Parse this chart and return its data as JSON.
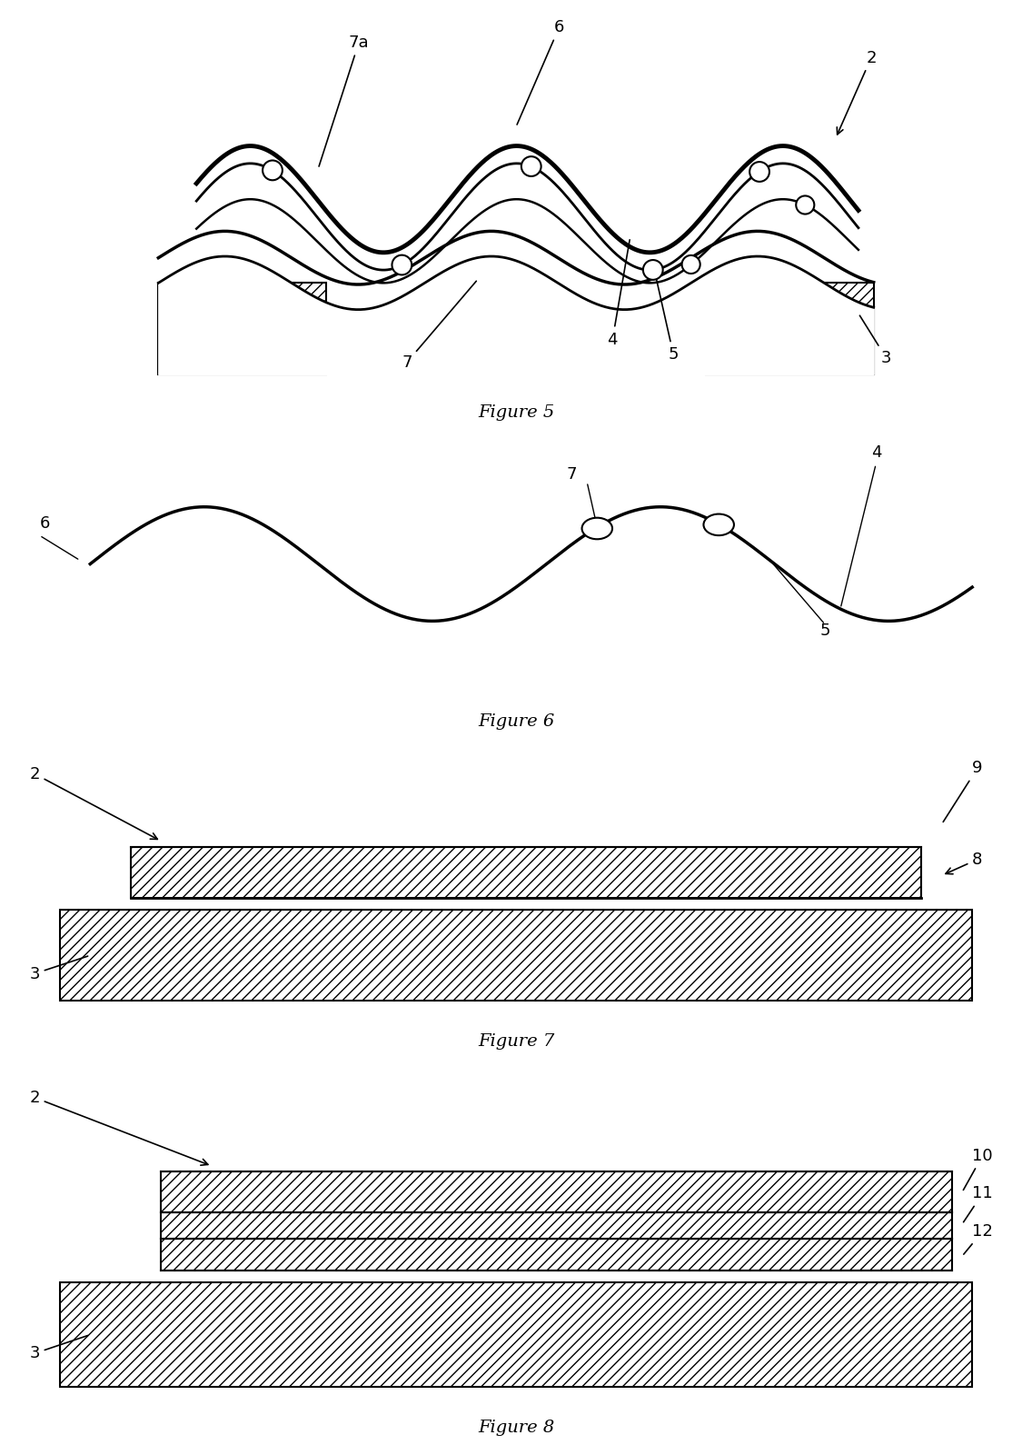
{
  "bg_color": "#ffffff",
  "line_color": "#000000",
  "hatch_color": "#000000",
  "fig_width": 12.4,
  "fig_height": 17.45,
  "figure_labels": [
    "Figure 5",
    "Figure 6",
    "Figure 7",
    "Figure 8"
  ],
  "label_fontsize": 14,
  "annot_fontsize": 13
}
